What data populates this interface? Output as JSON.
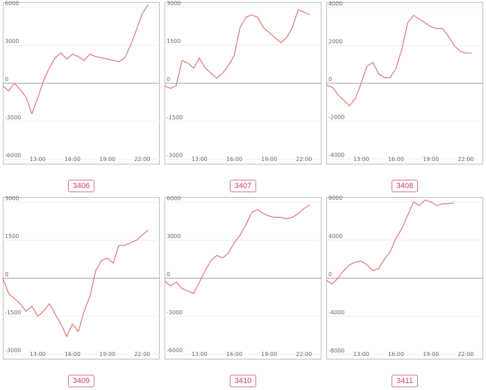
{
  "colors": {
    "line": "#e07a7a",
    "zero": "#999999",
    "frame": "#bbbbbb",
    "grid": "#eeeeee",
    "label": "#c0426f"
  },
  "chart_data": [
    {
      "type": "line",
      "title": "3406",
      "x_ticks": [
        "13:00",
        "16:00",
        "19:00",
        "22:00"
      ],
      "y_ticks": [
        6000,
        3000,
        0,
        -3000,
        -6000
      ],
      "ylim": [
        -6400,
        6400
      ],
      "xlim": [
        10.0,
        23.5
      ],
      "x": [
        10.0,
        10.5,
        11.0,
        11.5,
        12.0,
        12.5,
        13.0,
        13.5,
        14.0,
        14.5,
        15.0,
        15.5,
        16.0,
        16.5,
        17.0,
        17.5,
        18.0,
        18.5,
        19.0,
        19.5,
        20.0,
        20.5,
        21.0,
        21.5,
        22.0,
        22.5
      ],
      "y": [
        -200,
        -600,
        0,
        -500,
        -1100,
        -2400,
        -1200,
        200,
        1200,
        2000,
        2400,
        1900,
        2300,
        2100,
        1800,
        2300,
        2100,
        2000,
        1900,
        1800,
        1700,
        2000,
        3000,
        4200,
        5500,
        6200
      ]
    },
    {
      "type": "line",
      "title": "3407",
      "x_ticks": [
        "13:00",
        "16:00",
        "19:00",
        "22:00"
      ],
      "y_ticks": [
        3000,
        1500,
        0,
        -1500,
        -3000
      ],
      "ylim": [
        -3200,
        3200
      ],
      "xlim": [
        10.0,
        23.5
      ],
      "x": [
        10.0,
        10.5,
        11.0,
        11.5,
        12.0,
        12.5,
        13.0,
        13.5,
        14.0,
        14.5,
        15.0,
        15.5,
        16.0,
        16.5,
        17.0,
        17.5,
        18.0,
        18.5,
        19.0,
        19.5,
        20.0,
        20.5,
        21.0,
        21.5,
        22.0,
        22.5
      ],
      "y": [
        -100,
        -200,
        -100,
        900,
        800,
        600,
        1000,
        600,
        400,
        200,
        400,
        700,
        1100,
        2200,
        2600,
        2700,
        2600,
        2200,
        2000,
        1800,
        1600,
        1800,
        2200,
        2900,
        2800,
        2700
      ]
    },
    {
      "type": "line",
      "title": "3408",
      "x_ticks": [
        "13:00",
        "16:00",
        "19:00",
        "22:00"
      ],
      "y_ticks": [
        4000,
        2000,
        0,
        -2000,
        -4000
      ],
      "ylim": [
        -4300,
        4300
      ],
      "xlim": [
        10.0,
        23.5
      ],
      "x": [
        10.0,
        10.5,
        11.0,
        11.5,
        12.0,
        12.5,
        13.0,
        13.5,
        14.0,
        14.5,
        15.0,
        15.5,
        16.0,
        16.5,
        17.0,
        17.5,
        18.0,
        18.5,
        19.0,
        19.5,
        20.0,
        20.5,
        21.0,
        21.5,
        22.0,
        22.5
      ],
      "y": [
        -100,
        -200,
        -600,
        -900,
        -1200,
        -800,
        0,
        900,
        1100,
        500,
        300,
        300,
        800,
        1800,
        3200,
        3600,
        3400,
        3200,
        3000,
        2900,
        2900,
        2500,
        2000,
        1700,
        1600,
        1600
      ]
    },
    {
      "type": "line",
      "title": "3409",
      "x_ticks": [
        "13:00",
        "16:00",
        "19:00",
        "22:00"
      ],
      "y_ticks": [
        3000,
        1500,
        0,
        -1500,
        -3000
      ],
      "ylim": [
        -3200,
        3200
      ],
      "xlim": [
        10.0,
        23.5
      ],
      "x": [
        10.0,
        10.5,
        11.0,
        11.5,
        12.0,
        12.5,
        13.0,
        13.5,
        14.0,
        14.5,
        15.0,
        15.5,
        16.0,
        16.5,
        17.0,
        17.5,
        18.0,
        18.5,
        19.0,
        19.5,
        20.0,
        20.5,
        21.0,
        21.5,
        22.0,
        22.5
      ],
      "y": [
        0,
        -600,
        -800,
        -1000,
        -1300,
        -1100,
        -1500,
        -1300,
        -1000,
        -1400,
        -1800,
        -2300,
        -1800,
        -2100,
        -1300,
        -700,
        300,
        700,
        800,
        600,
        1300,
        1300,
        1400,
        1500,
        1700,
        1900
      ]
    },
    {
      "type": "line",
      "title": "3410",
      "x_ticks": [
        "13:00",
        "16:00",
        "19:00",
        "22:00"
      ],
      "y_ticks": [
        6000,
        3000,
        0,
        -3000,
        -6000
      ],
      "ylim": [
        -6400,
        6400
      ],
      "xlim": [
        10.0,
        23.5
      ],
      "x": [
        10.0,
        10.5,
        11.0,
        11.5,
        12.0,
        12.5,
        13.0,
        13.5,
        14.0,
        14.5,
        15.0,
        15.5,
        16.0,
        16.5,
        17.0,
        17.5,
        18.0,
        18.5,
        19.0,
        19.5,
        20.0,
        20.5,
        21.0,
        21.5,
        22.0,
        22.5
      ],
      "y": [
        -200,
        -600,
        -300,
        -800,
        -1000,
        -1200,
        -300,
        600,
        1400,
        1800,
        1600,
        2000,
        2800,
        3400,
        4200,
        5200,
        5400,
        5100,
        4900,
        4800,
        4800,
        4700,
        4800,
        5100,
        5500,
        5800
      ]
    },
    {
      "type": "line",
      "title": "3411",
      "x_ticks": [
        "13:00",
        "16:00",
        "19:00",
        "22:00"
      ],
      "y_ticks": [
        8000,
        4000,
        0,
        -4000,
        -8000
      ],
      "ylim": [
        -8500,
        8500
      ],
      "xlim": [
        10.0,
        23.5
      ],
      "x": [
        10.0,
        10.5,
        11.0,
        11.5,
        12.0,
        12.5,
        13.0,
        13.5,
        14.0,
        14.5,
        15.0,
        15.5,
        16.0,
        16.5,
        17.0,
        17.5,
        18.0,
        18.5,
        19.0,
        19.5,
        20.0,
        20.5,
        21.0
      ],
      "y": [
        -200,
        -600,
        0,
        800,
        1400,
        1700,
        1800,
        1400,
        800,
        1000,
        2000,
        2800,
        4200,
        5200,
        6600,
        8000,
        7600,
        8200,
        8000,
        7600,
        7800,
        7800,
        7900
      ]
    }
  ]
}
